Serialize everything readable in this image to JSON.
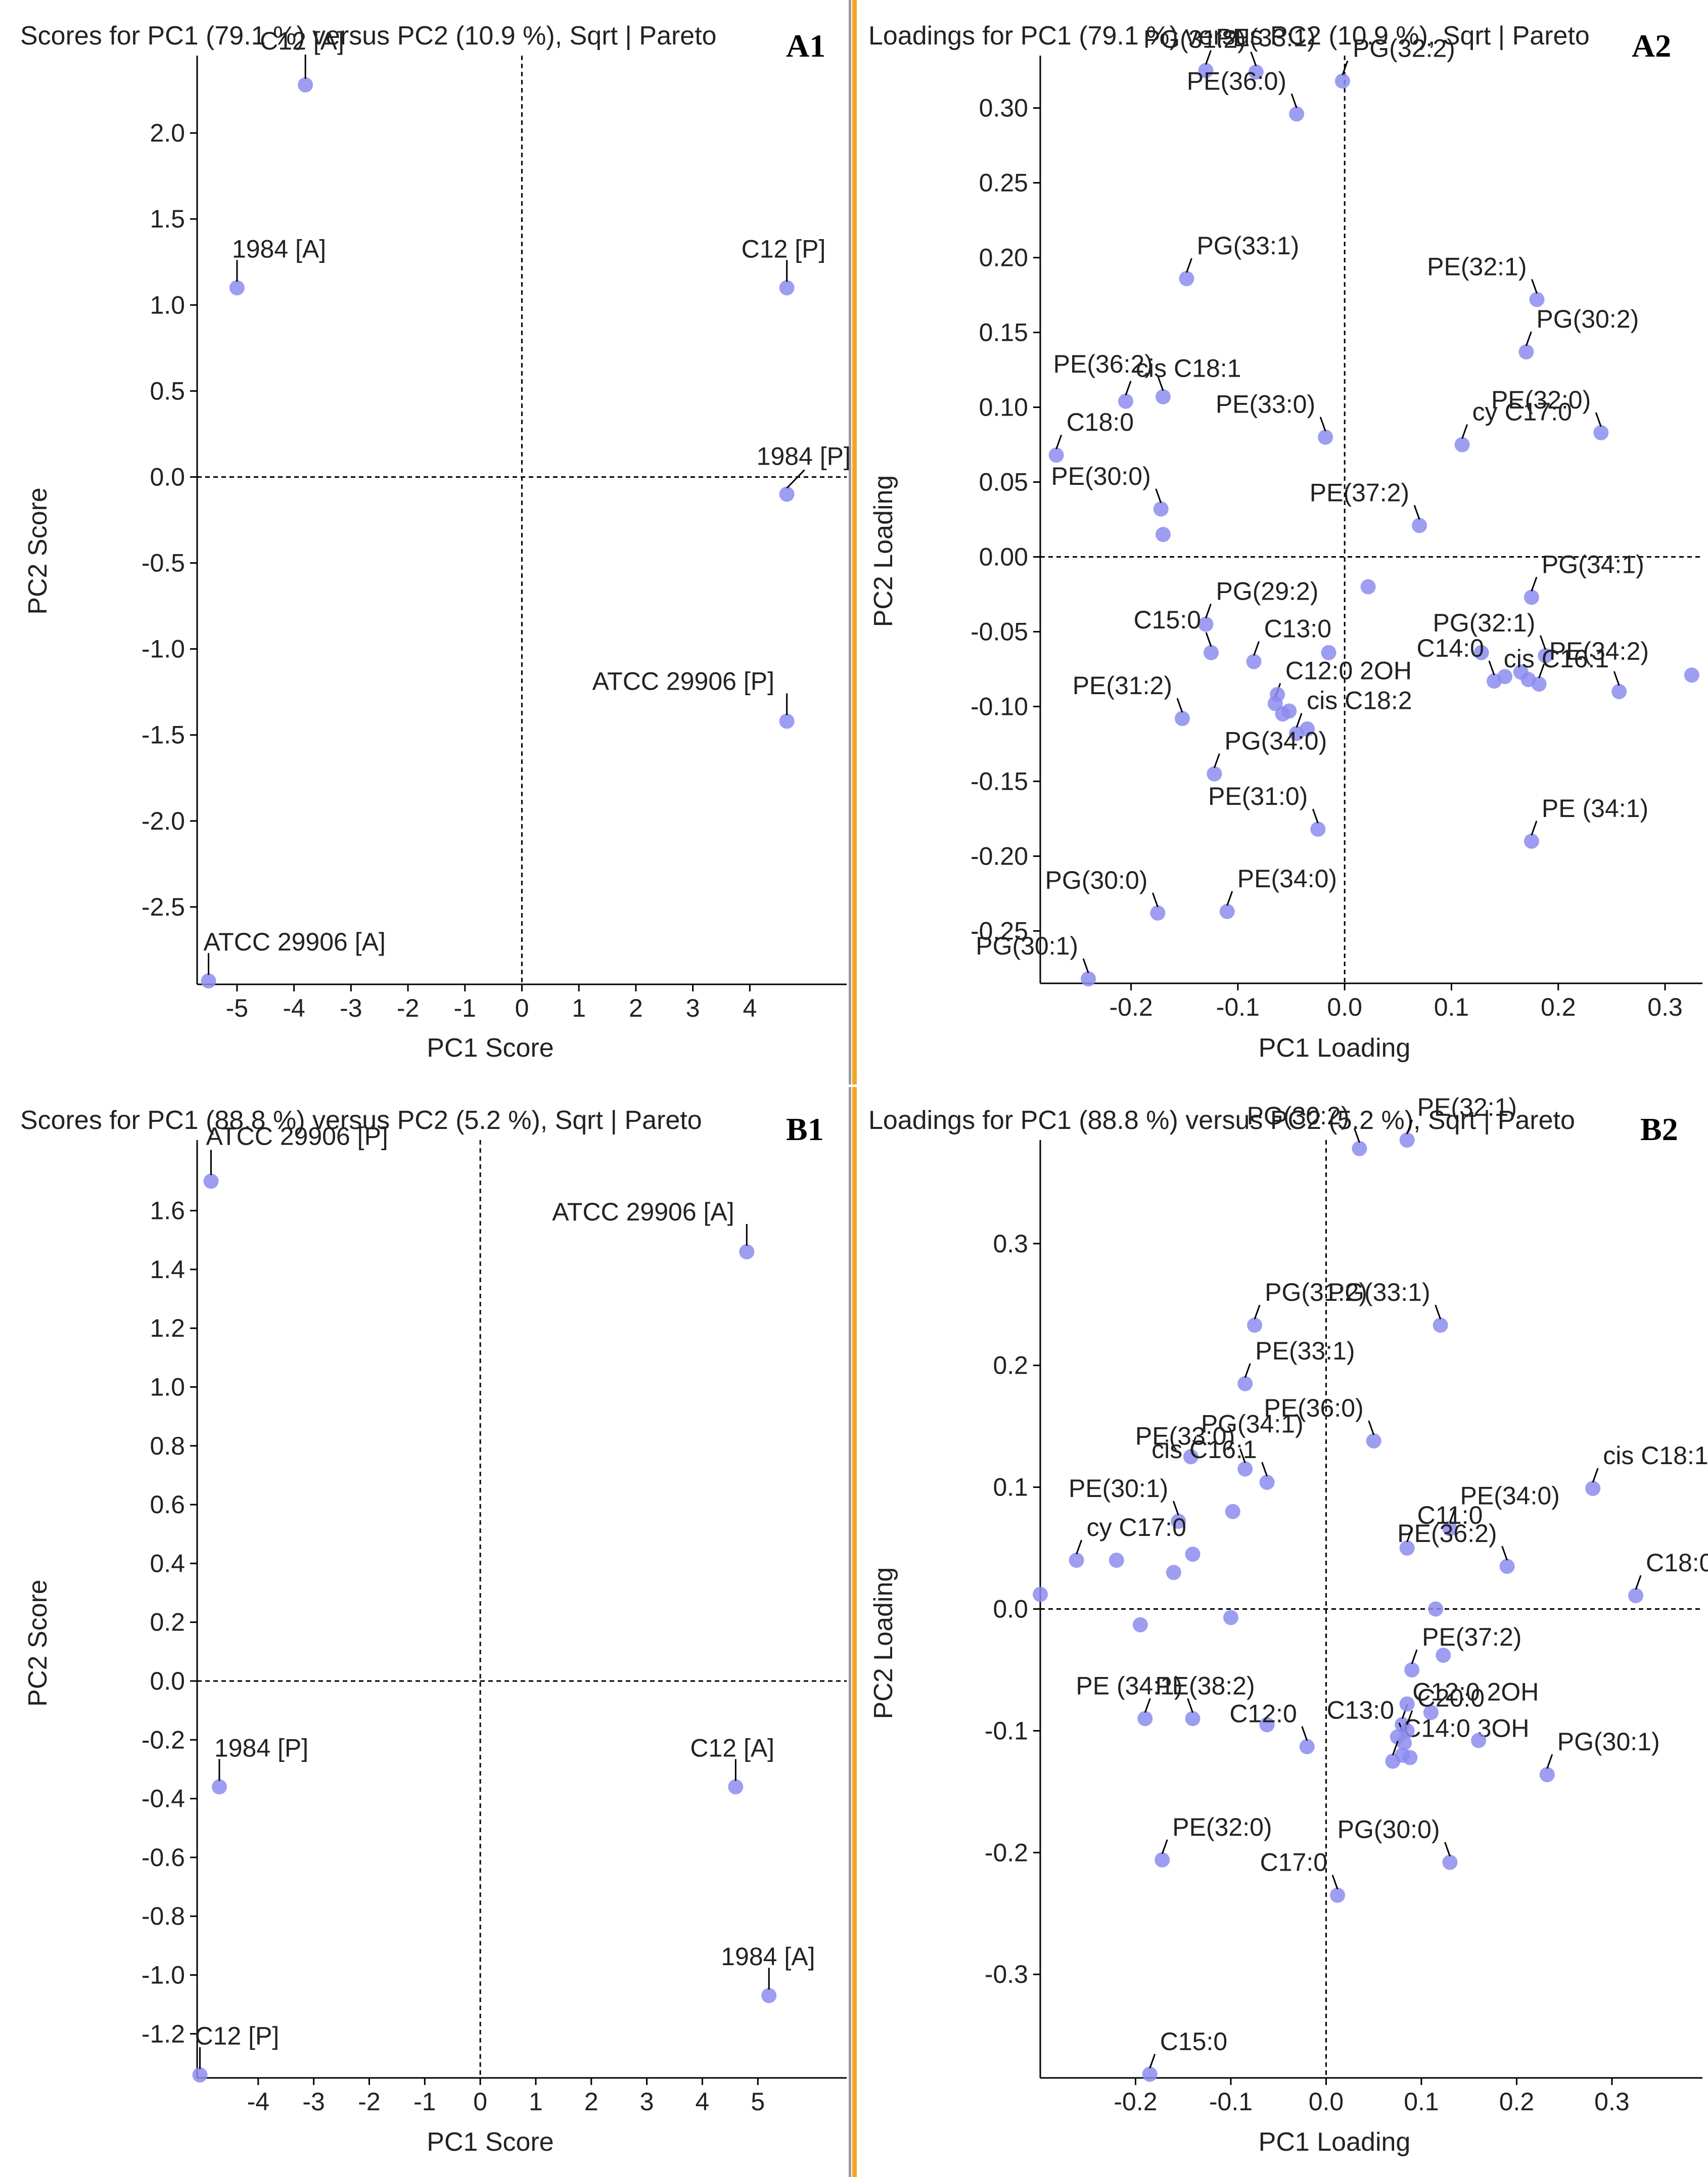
{
  "chart_data": [
    {
      "type": "scatter",
      "id": "A1",
      "panel_label": "A1",
      "title": "Scores for PC1 (79.1 %) versus PC2 (10.9 %), Sqrt | Pareto",
      "xlabel": "PC1 Score",
      "ylabel": "PC2 Score",
      "xlim": [
        -5.7,
        5.7
      ],
      "ylim": [
        -2.95,
        2.45
      ],
      "xticks": [
        -5,
        -4,
        -3,
        -2,
        -1,
        0,
        1,
        2,
        3,
        4
      ],
      "yticks": [
        -2.5,
        -2.0,
        -1.5,
        -1.0,
        -0.5,
        0.0,
        0.5,
        1.0,
        1.5,
        2.0
      ],
      "tick_decimals": [
        0,
        1
      ],
      "points": [
        {
          "label": "C12 [A]",
          "x": -3.8,
          "y": 2.28
        },
        {
          "label": "1984 [A]",
          "x": -5.0,
          "y": 1.1
        },
        {
          "label": "C12 [P]",
          "x": 4.65,
          "y": 1.1
        },
        {
          "label": "1984 [P]",
          "x": 4.65,
          "y": -0.1
        },
        {
          "label": "ATCC 29906 [P]",
          "x": 4.65,
          "y": -1.42
        },
        {
          "label": "ATCC 29906 [A]",
          "x": -5.5,
          "y": -2.93
        }
      ]
    },
    {
      "type": "scatter",
      "id": "A2",
      "panel_label": "A2",
      "title": "Loadings for PC1 (79.1 %) versus PC2 (10.9 %), Sqrt | Pareto",
      "xlabel": "PC1 Loading",
      "ylabel": "PC2 Loading",
      "xlim": [
        -0.285,
        0.335
      ],
      "ylim": [
        -0.285,
        0.335
      ],
      "xticks": [
        -0.2,
        -0.1,
        0.0,
        0.1,
        0.2,
        0.3
      ],
      "yticks": [
        -0.25,
        -0.2,
        -0.15,
        -0.1,
        -0.05,
        0.0,
        0.05,
        0.1,
        0.15,
        0.2,
        0.25,
        0.3
      ],
      "tick_decimals": [
        1,
        2
      ],
      "points": [
        {
          "label": "PE(33:1)",
          "x": -0.13,
          "y": 0.325
        },
        {
          "label": "PG(31:2)",
          "x": -0.083,
          "y": 0.324
        },
        {
          "label": "PG(32:2)",
          "x": -0.002,
          "y": 0.318
        },
        {
          "label": "PE(36:0)",
          "x": -0.045,
          "y": 0.296
        },
        {
          "label": "PG(33:1)",
          "x": -0.148,
          "y": 0.186
        },
        {
          "label": "PE(32:1)",
          "x": 0.18,
          "y": 0.172
        },
        {
          "label": "PG(30:2)",
          "x": 0.17,
          "y": 0.137
        },
        {
          "label": "PE(36:2)",
          "x": -0.17,
          "y": 0.107
        },
        {
          "label": "cis C18:1",
          "x": -0.205,
          "y": 0.104
        },
        {
          "label": "PE(33:0)",
          "x": -0.018,
          "y": 0.08
        },
        {
          "label": "cy C17:0",
          "x": 0.11,
          "y": 0.075
        },
        {
          "label": "PE(32:0)",
          "x": 0.24,
          "y": 0.083
        },
        {
          "label": "C18:0",
          "x": -0.27,
          "y": 0.068
        },
        {
          "label": "PE(30:0)",
          "x": -0.172,
          "y": 0.032
        },
        {
          "label": "",
          "x": -0.17,
          "y": 0.015
        },
        {
          "label": "PE(37:2)",
          "x": 0.07,
          "y": 0.021
        },
        {
          "label": "PG(29:2)",
          "x": -0.13,
          "y": -0.045
        },
        {
          "label": "",
          "x": 0.022,
          "y": -0.02
        },
        {
          "label": "PG(34:1)",
          "x": 0.175,
          "y": -0.027
        },
        {
          "label": "C15:0",
          "x": -0.125,
          "y": -0.064
        },
        {
          "label": "C13:0",
          "x": -0.085,
          "y": -0.07
        },
        {
          "label": "",
          "x": -0.015,
          "y": -0.064
        },
        {
          "label": "C12:0 2OH",
          "x": -0.065,
          "y": -0.098
        },
        {
          "label": "",
          "x": -0.063,
          "y": -0.092
        },
        {
          "label": "",
          "x": -0.058,
          "y": -0.105
        },
        {
          "label": "",
          "x": -0.052,
          "y": -0.103
        },
        {
          "label": "cis C18:2",
          "x": -0.045,
          "y": -0.118
        },
        {
          "label": "",
          "x": -0.035,
          "y": -0.115
        },
        {
          "label": "",
          "x": 0.128,
          "y": -0.064
        },
        {
          "label": "C14:0",
          "x": 0.14,
          "y": -0.083
        },
        {
          "label": "",
          "x": 0.15,
          "y": -0.08
        },
        {
          "label": "",
          "x": 0.165,
          "y": -0.077
        },
        {
          "label": "",
          "x": 0.172,
          "y": -0.082
        },
        {
          "label": "PG(32:1)",
          "x": 0.188,
          "y": -0.066
        },
        {
          "label": "PE(34:2)",
          "x": 0.182,
          "y": -0.085
        },
        {
          "label": "cis C16:1",
          "x": 0.257,
          "y": -0.09
        },
        {
          "label": "",
          "x": 0.325,
          "y": -0.079
        },
        {
          "label": "PE(31:2)",
          "x": -0.152,
          "y": -0.108
        },
        {
          "label": "PG(34:0)",
          "x": -0.122,
          "y": -0.145
        },
        {
          "label": "PE(31:0)",
          "x": -0.025,
          "y": -0.182
        },
        {
          "label": "PE (34:1)",
          "x": 0.175,
          "y": -0.19
        },
        {
          "label": "PG(30:0)",
          "x": -0.175,
          "y": -0.238
        },
        {
          "label": "PE(34:0)",
          "x": -0.11,
          "y": -0.237
        },
        {
          "label": "PG(30:1)",
          "x": -0.24,
          "y": -0.282
        }
      ]
    },
    {
      "type": "scatter",
      "id": "B1",
      "panel_label": "B1",
      "title": "Scores for PC1 (88.8 %) versus PC2 (5.2 %), Sqrt | Pareto",
      "xlabel": "PC1 Score",
      "ylabel": "PC2 Score",
      "xlim": [
        -5.1,
        6.6
      ],
      "ylim": [
        -1.35,
        1.84
      ],
      "xticks": [
        -4,
        -3,
        -2,
        -1,
        0,
        1,
        2,
        3,
        4,
        5
      ],
      "yticks": [
        -1.2,
        -1.0,
        -0.8,
        -0.6,
        -0.4,
        -0.2,
        0.0,
        0.2,
        0.4,
        0.6,
        0.8,
        1.0,
        1.2,
        1.4,
        1.6
      ],
      "tick_decimals": [
        0,
        1
      ],
      "points": [
        {
          "label": "ATCC 29906 [P]",
          "x": -4.85,
          "y": 1.7
        },
        {
          "label": "ATCC 29906 [A]",
          "x": 4.8,
          "y": 1.46
        },
        {
          "label": "1984 [P]",
          "x": -4.7,
          "y": -0.36
        },
        {
          "label": "C12 [A]",
          "x": 4.6,
          "y": -0.36
        },
        {
          "label": "1984 [A]",
          "x": 5.2,
          "y": -1.07
        },
        {
          "label": "C12 [P]",
          "x": -5.05,
          "y": -1.34
        }
      ]
    },
    {
      "type": "scatter",
      "id": "B2",
      "panel_label": "B2",
      "title": "Loadings for PC1 (88.8 %) versus PC2 (5.2 %), Sqrt | Pareto",
      "xlabel": "PC1 Loading",
      "ylabel": "PC2 Loading",
      "xlim": [
        -0.3,
        0.395
      ],
      "ylim": [
        -0.385,
        0.385
      ],
      "xticks": [
        -0.2,
        -0.1,
        0.0,
        0.1,
        0.2,
        0.3
      ],
      "yticks": [
        -0.3,
        -0.2,
        -0.1,
        0.0,
        0.1,
        0.2,
        0.3
      ],
      "tick_decimals": [
        1,
        1
      ],
      "points": [
        {
          "label": "PE(32:1)",
          "x": 0.085,
          "y": 0.385
        },
        {
          "label": "PG(30:2)",
          "x": 0.035,
          "y": 0.378
        },
        {
          "label": "PG(31:2)",
          "x": -0.075,
          "y": 0.233
        },
        {
          "label": "PG(33:1)",
          "x": 0.12,
          "y": 0.233
        },
        {
          "label": "PE(33:1)",
          "x": -0.085,
          "y": 0.185
        },
        {
          "label": "PE(36:0)",
          "x": 0.05,
          "y": 0.138
        },
        {
          "label": "PG(34:1)",
          "x": -0.142,
          "y": 0.125
        },
        {
          "label": "cis C16:1",
          "x": -0.062,
          "y": 0.104
        },
        {
          "label": "cis C18:1",
          "x": 0.28,
          "y": 0.099
        },
        {
          "label": "PE(33:0)",
          "x": -0.085,
          "y": 0.115
        },
        {
          "label": "",
          "x": -0.098,
          "y": 0.08
        },
        {
          "label": "PE(30:1)",
          "x": -0.155,
          "y": 0.072
        },
        {
          "label": "PE(34:0)",
          "x": 0.13,
          "y": 0.066
        },
        {
          "label": "PE(36:2)",
          "x": 0.19,
          "y": 0.035
        },
        {
          "label": "C11:0",
          "x": 0.085,
          "y": 0.05
        },
        {
          "label": "",
          "x": -0.14,
          "y": 0.045
        },
        {
          "label": "",
          "x": -0.16,
          "y": 0.03
        },
        {
          "label": "",
          "x": -0.22,
          "y": 0.04
        },
        {
          "label": "cy C17:0",
          "x": -0.262,
          "y": 0.04
        },
        {
          "label": "",
          "x": -0.3,
          "y": 0.012
        },
        {
          "label": "C18:0",
          "x": 0.325,
          "y": 0.011
        },
        {
          "label": "",
          "x": -0.195,
          "y": -0.013
        },
        {
          "label": "",
          "x": -0.1,
          "y": -0.007
        },
        {
          "label": "",
          "x": 0.115,
          "y": 0.0
        },
        {
          "label": "PE(37:2)",
          "x": 0.09,
          "y": -0.05
        },
        {
          "label": "",
          "x": 0.123,
          "y": -0.038
        },
        {
          "label": "C12:0 2OH",
          "x": 0.08,
          "y": -0.095
        },
        {
          "label": "C13:0",
          "x": 0.082,
          "y": -0.11
        },
        {
          "label": "",
          "x": 0.085,
          "y": -0.078
        },
        {
          "label": "",
          "x": 0.11,
          "y": -0.085
        },
        {
          "label": "",
          "x": 0.075,
          "y": -0.105
        },
        {
          "label": "",
          "x": 0.088,
          "y": -0.122
        },
        {
          "label": "C14:0 3OH",
          "x": 0.07,
          "y": -0.125
        },
        {
          "label": "",
          "x": 0.08,
          "y": -0.12
        },
        {
          "label": "C20:0",
          "x": 0.085,
          "y": -0.1
        },
        {
          "label": "",
          "x": 0.16,
          "y": -0.108
        },
        {
          "label": "PE(38:2)",
          "x": -0.19,
          "y": -0.09
        },
        {
          "label": "PE (34:1)",
          "x": -0.14,
          "y": -0.09
        },
        {
          "label": "",
          "x": -0.062,
          "y": -0.095
        },
        {
          "label": "C12:0",
          "x": -0.02,
          "y": -0.113
        },
        {
          "label": "PG(30:1)",
          "x": 0.232,
          "y": -0.136
        },
        {
          "label": "PG(30:0)",
          "x": 0.13,
          "y": -0.208
        },
        {
          "label": "PE(32:0)",
          "x": -0.172,
          "y": -0.206
        },
        {
          "label": "C17:0",
          "x": 0.012,
          "y": -0.235
        },
        {
          "label": "C15:0",
          "x": -0.185,
          "y": -0.382
        }
      ]
    }
  ]
}
